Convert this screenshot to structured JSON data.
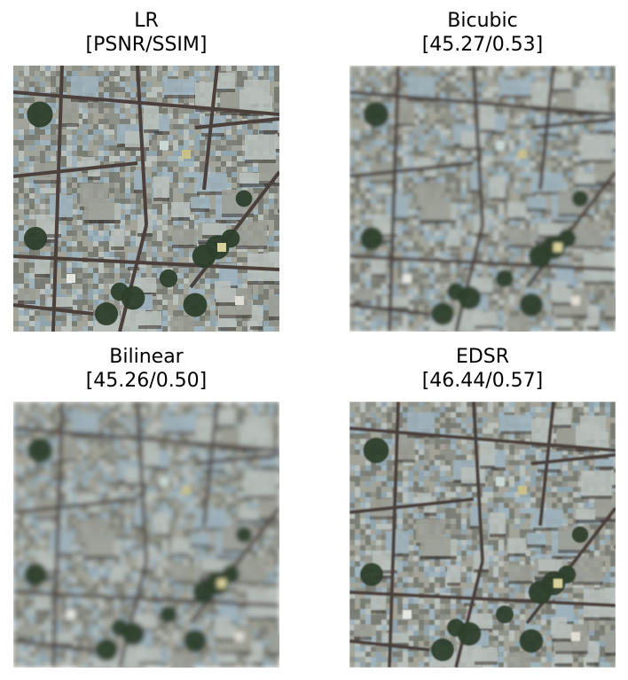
{
  "panels": [
    {
      "title": "LR",
      "metrics": "[PSNR/SSIM]"
    },
    {
      "title": "Bicubic",
      "metrics": "[45.27/0.53]"
    },
    {
      "title": "Bilinear",
      "metrics": "[45.26/0.50]"
    },
    {
      "title": "EDSR",
      "metrics": "[46.44/0.57]"
    }
  ],
  "colors": {
    "base": "#8f9288",
    "roof_light": "#b9c0bb",
    "roof_blue": "#9fb3bd",
    "shadow": "#3a3431",
    "vegetation": "#2e3f2c",
    "road": "#4b403b"
  }
}
